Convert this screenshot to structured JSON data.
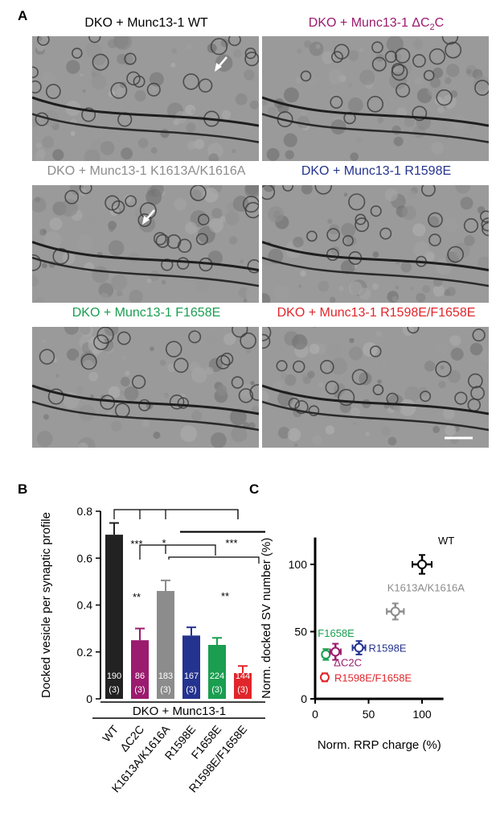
{
  "panel_a": {
    "letter": "A",
    "images": [
      {
        "title_pre": "DKO + Munc13-1 WT",
        "title_sub": "",
        "title_post": "",
        "color": "#000000"
      },
      {
        "title_pre": "DKO + Munc13-1 ΔC",
        "title_sub": "2",
        "title_post": "C",
        "color": "#9b1b6e"
      },
      {
        "title_pre": "DKO + Munc13-1 K1613A/K1616A",
        "title_sub": "",
        "title_post": "",
        "color": "#8c8c8c"
      },
      {
        "title_pre": "DKO + Munc13-1 R1598E",
        "title_sub": "",
        "title_post": "",
        "color": "#24338f"
      },
      {
        "title_pre": "DKO + Munc13-1 F1658E",
        "title_sub": "",
        "title_post": "",
        "color": "#1a9e50"
      },
      {
        "title_pre": "DKO + Munc13-1 R1598E/F1658E",
        "title_sub": "",
        "title_post": "",
        "color": "#e0262b"
      }
    ]
  },
  "panel_b": {
    "letter": "B",
    "group_label": "DKO + Munc13-1",
    "chart_data": {
      "type": "bar",
      "ylabel": "Docked vesicle per synaptic profile",
      "ylim": [
        0,
        0.8
      ],
      "yticks": [
        "0",
        "0.2",
        "0.4",
        "0.6",
        "0.8"
      ],
      "categories": [
        "WT",
        "ΔC2C",
        "K1613A/K1616A",
        "R1598E",
        "F1658E",
        "R1598E/F1658E"
      ],
      "values": [
        0.7,
        0.25,
        0.46,
        0.27,
        0.23,
        0.11
      ],
      "errors": [
        0.05,
        0.05,
        0.045,
        0.035,
        0.03,
        0.03
      ],
      "n_synapses": [
        "190",
        "86",
        "183",
        "167",
        "224",
        "144"
      ],
      "n_cultures": [
        "(3)",
        "(3)",
        "(3)",
        "(3)",
        "(3)",
        "(3)"
      ],
      "colors": [
        "#222222",
        "#9b1b6e",
        "#8c8c8c",
        "#24338f",
        "#1a9e50",
        "#e0262b"
      ],
      "significance": [
        "***",
        "*",
        "***",
        "**",
        "**"
      ]
    }
  },
  "panel_c": {
    "letter": "C",
    "chart_data": {
      "type": "scatter",
      "xlabel": "Norm. RRP charge (%)",
      "ylabel": "Norm. docked SV number (%)",
      "xlim": [
        0,
        120
      ],
      "ylim": [
        0,
        120
      ],
      "xticks": [
        "0",
        "50",
        "100"
      ],
      "yticks": [
        "0",
        "50",
        "100"
      ],
      "points": [
        {
          "label": "WT",
          "x": 100,
          "y": 100,
          "xerr": 9,
          "yerr": 7,
          "color": "#000000"
        },
        {
          "label": "K1613A/K1616A",
          "x": 75,
          "y": 65,
          "xerr": 8,
          "yerr": 6,
          "color": "#8c8c8c"
        },
        {
          "label": "R1598E",
          "x": 41,
          "y": 38,
          "xerr": 6,
          "yerr": 5,
          "color": "#24338f"
        },
        {
          "label": "F1658E",
          "x": 10,
          "y": 33,
          "xerr": 3,
          "yerr": 4,
          "color": "#1a9e50"
        },
        {
          "label": "ΔC2C",
          "x": 19,
          "y": 35,
          "xerr": 5,
          "yerr": 6,
          "color": "#9b1b6e"
        },
        {
          "label": "R1598E/F1658E",
          "x": 9,
          "y": 16,
          "xerr": 2,
          "yerr": 3,
          "color": "#e0262b"
        }
      ]
    }
  }
}
